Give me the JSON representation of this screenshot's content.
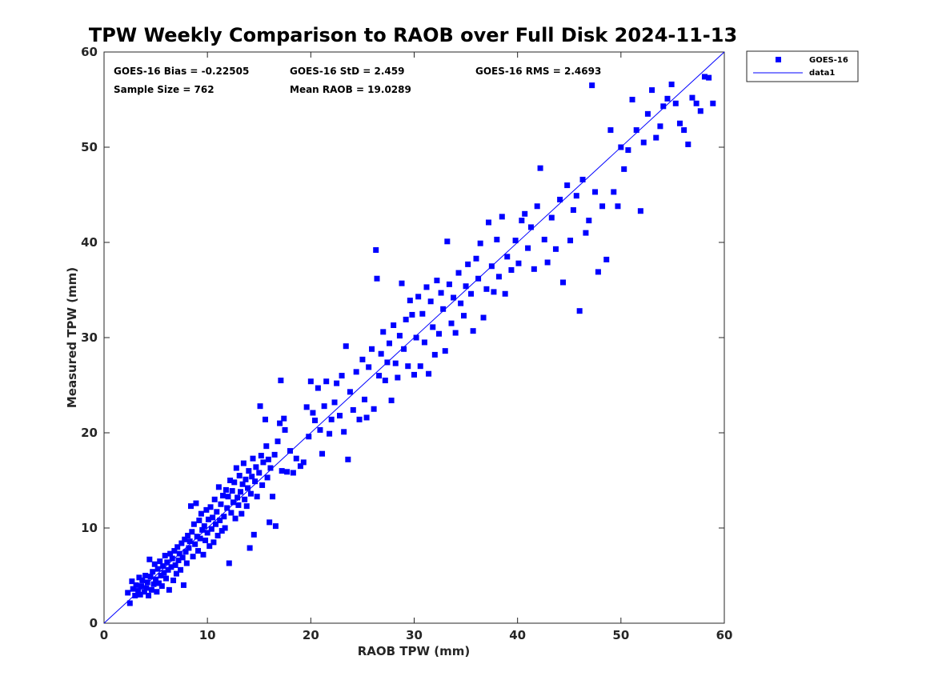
{
  "chart_data": {
    "type": "scatter",
    "title": "TPW Weekly Comparison to RAOB over Full Disk 2024-11-13",
    "xlabel": "RAOB TPW (mm)",
    "ylabel": "Measured TPW (mm)",
    "xlim": [
      0,
      60
    ],
    "ylim": [
      0,
      60
    ],
    "xticks": [
      0,
      10,
      20,
      30,
      40,
      50,
      60
    ],
    "yticks": [
      0,
      10,
      20,
      30,
      40,
      50,
      60
    ],
    "grid": false,
    "legend_position": "outside top-right",
    "annotations": {
      "bias": "GOES-16 Bias = -0.22505",
      "std": "GOES-16 StD = 2.459",
      "rms": "GOES-16 RMS = 2.4693",
      "sample_size": "Sample Size = 762",
      "mean_raob": "Mean RAOB = 19.0289"
    },
    "series": [
      {
        "name": "GOES-16",
        "marker": "square",
        "color": "#0000ff",
        "points": [
          [
            2.3,
            3.2
          ],
          [
            2.5,
            2.1
          ],
          [
            2.7,
            4.4
          ],
          [
            2.8,
            3.6
          ],
          [
            3.0,
            2.9
          ],
          [
            3.1,
            4.0
          ],
          [
            3.3,
            3.4
          ],
          [
            3.4,
            4.8
          ],
          [
            3.5,
            3.0
          ],
          [
            3.6,
            3.9
          ],
          [
            3.7,
            4.5
          ],
          [
            3.9,
            3.3
          ],
          [
            4.0,
            5.0
          ],
          [
            4.1,
            3.7
          ],
          [
            4.2,
            4.3
          ],
          [
            4.3,
            2.9
          ],
          [
            4.4,
            6.7
          ],
          [
            4.5,
            4.9
          ],
          [
            4.6,
            3.5
          ],
          [
            4.7,
            5.4
          ],
          [
            4.8,
            4.1
          ],
          [
            4.9,
            6.2
          ],
          [
            5.0,
            4.6
          ],
          [
            5.1,
            3.3
          ],
          [
            5.2,
            5.7
          ],
          [
            5.3,
            4.2
          ],
          [
            5.4,
            6.5
          ],
          [
            5.5,
            5.0
          ],
          [
            5.6,
            3.9
          ],
          [
            5.7,
            6.0
          ],
          [
            5.8,
            5.3
          ],
          [
            5.9,
            7.1
          ],
          [
            6.0,
            4.7
          ],
          [
            6.1,
            6.4
          ],
          [
            6.2,
            5.6
          ],
          [
            6.3,
            3.5
          ],
          [
            6.4,
            7.3
          ],
          [
            6.5,
            5.9
          ],
          [
            6.6,
            6.8
          ],
          [
            6.7,
            4.5
          ],
          [
            6.8,
            7.6
          ],
          [
            6.9,
            6.1
          ],
          [
            7.0,
            5.2
          ],
          [
            7.1,
            8.0
          ],
          [
            7.2,
            6.6
          ],
          [
            7.3,
            7.3
          ],
          [
            7.4,
            5.6
          ],
          [
            7.5,
            8.4
          ],
          [
            7.6,
            6.9
          ],
          [
            7.7,
            4.0
          ],
          [
            7.8,
            8.8
          ],
          [
            7.9,
            7.5
          ],
          [
            8.0,
            6.3
          ],
          [
            8.1,
            9.2
          ],
          [
            8.2,
            7.9
          ],
          [
            8.3,
            8.6
          ],
          [
            8.4,
            12.3
          ],
          [
            8.5,
            9.6
          ],
          [
            8.6,
            7.0
          ],
          [
            8.7,
            10.4
          ],
          [
            8.8,
            8.3
          ],
          [
            8.9,
            12.6
          ],
          [
            9.0,
            9.1
          ],
          [
            9.1,
            7.6
          ],
          [
            9.2,
            10.8
          ],
          [
            9.3,
            8.9
          ],
          [
            9.4,
            11.5
          ],
          [
            9.5,
            9.8
          ],
          [
            9.6,
            7.2
          ],
          [
            9.7,
            10.2
          ],
          [
            9.8,
            8.7
          ],
          [
            9.9,
            11.9
          ],
          [
            10.0,
            9.5
          ],
          [
            10.1,
            10.9
          ],
          [
            10.2,
            8.1
          ],
          [
            10.3,
            12.2
          ],
          [
            10.4,
            9.9
          ],
          [
            10.5,
            11.1
          ],
          [
            10.6,
            8.5
          ],
          [
            10.7,
            13.0
          ],
          [
            10.8,
            10.4
          ],
          [
            10.9,
            11.7
          ],
          [
            11.0,
            9.2
          ],
          [
            11.1,
            14.3
          ],
          [
            11.2,
            10.8
          ],
          [
            11.3,
            12.5
          ],
          [
            11.4,
            9.7
          ],
          [
            11.5,
            13.4
          ],
          [
            11.6,
            11.2
          ],
          [
            11.7,
            10.0
          ],
          [
            11.8,
            14.0
          ],
          [
            11.9,
            12.1
          ],
          [
            12.0,
            13.3
          ],
          [
            12.1,
            6.3
          ],
          [
            12.2,
            15.0
          ],
          [
            12.3,
            11.6
          ],
          [
            12.4,
            13.9
          ],
          [
            12.5,
            12.7
          ],
          [
            12.6,
            14.8
          ],
          [
            12.7,
            11.0
          ],
          [
            12.8,
            16.3
          ],
          [
            12.9,
            13.2
          ],
          [
            13.0,
            12.4
          ],
          [
            13.1,
            15.5
          ],
          [
            13.2,
            13.8
          ],
          [
            13.3,
            11.5
          ],
          [
            13.4,
            14.6
          ],
          [
            13.5,
            16.8
          ],
          [
            13.6,
            13.0
          ],
          [
            13.7,
            15.1
          ],
          [
            13.8,
            12.3
          ],
          [
            13.9,
            14.2
          ],
          [
            14.0,
            16.0
          ],
          [
            14.1,
            7.9
          ],
          [
            14.2,
            13.6
          ],
          [
            14.3,
            15.4
          ],
          [
            14.4,
            17.3
          ],
          [
            14.5,
            9.3
          ],
          [
            14.6,
            14.9
          ],
          [
            14.7,
            16.4
          ],
          [
            14.8,
            13.3
          ],
          [
            15.0,
            15.8
          ],
          [
            15.1,
            22.8
          ],
          [
            15.2,
            17.6
          ],
          [
            15.3,
            14.5
          ],
          [
            15.4,
            16.9
          ],
          [
            15.6,
            21.4
          ],
          [
            15.7,
            18.6
          ],
          [
            15.8,
            15.3
          ],
          [
            15.9,
            17.2
          ],
          [
            16.0,
            10.6
          ],
          [
            16.1,
            16.3
          ],
          [
            16.3,
            13.3
          ],
          [
            16.5,
            17.7
          ],
          [
            16.6,
            10.2
          ],
          [
            16.8,
            19.1
          ],
          [
            17.0,
            21.0
          ],
          [
            17.1,
            25.5
          ],
          [
            17.2,
            16.0
          ],
          [
            17.4,
            21.5
          ],
          [
            17.5,
            20.3
          ],
          [
            17.7,
            15.9
          ],
          [
            18.0,
            18.1
          ],
          [
            18.3,
            15.8
          ],
          [
            18.6,
            17.3
          ],
          [
            19.0,
            16.5
          ],
          [
            19.3,
            16.9
          ],
          [
            19.6,
            22.7
          ],
          [
            19.8,
            19.6
          ],
          [
            20.0,
            25.4
          ],
          [
            20.2,
            22.1
          ],
          [
            20.4,
            21.3
          ],
          [
            20.7,
            24.7
          ],
          [
            20.9,
            20.3
          ],
          [
            21.1,
            17.8
          ],
          [
            21.3,
            22.8
          ],
          [
            21.5,
            25.4
          ],
          [
            21.8,
            19.9
          ],
          [
            22.0,
            21.4
          ],
          [
            22.3,
            23.2
          ],
          [
            22.5,
            25.2
          ],
          [
            22.8,
            21.8
          ],
          [
            23.0,
            26.0
          ],
          [
            23.2,
            20.1
          ],
          [
            23.4,
            29.1
          ],
          [
            23.6,
            17.2
          ],
          [
            23.8,
            24.3
          ],
          [
            24.1,
            22.4
          ],
          [
            24.4,
            26.4
          ],
          [
            24.7,
            21.4
          ],
          [
            25.0,
            27.7
          ],
          [
            25.2,
            23.5
          ],
          [
            25.4,
            21.6
          ],
          [
            25.6,
            26.9
          ],
          [
            25.9,
            28.8
          ],
          [
            26.1,
            22.5
          ],
          [
            26.3,
            39.2
          ],
          [
            26.4,
            36.2
          ],
          [
            26.6,
            26.0
          ],
          [
            26.8,
            28.3
          ],
          [
            27.0,
            30.6
          ],
          [
            27.2,
            25.5
          ],
          [
            27.4,
            27.4
          ],
          [
            27.6,
            29.4
          ],
          [
            27.8,
            23.4
          ],
          [
            28.0,
            31.3
          ],
          [
            28.2,
            27.3
          ],
          [
            28.4,
            25.8
          ],
          [
            28.6,
            30.2
          ],
          [
            28.8,
            35.7
          ],
          [
            29.0,
            28.8
          ],
          [
            29.2,
            31.9
          ],
          [
            29.4,
            27.0
          ],
          [
            29.6,
            33.9
          ],
          [
            29.8,
            32.4
          ],
          [
            30.0,
            26.1
          ],
          [
            30.2,
            30.0
          ],
          [
            30.4,
            34.3
          ],
          [
            30.6,
            27.0
          ],
          [
            30.8,
            32.5
          ],
          [
            31.0,
            29.5
          ],
          [
            31.2,
            35.3
          ],
          [
            31.4,
            26.2
          ],
          [
            31.6,
            33.8
          ],
          [
            31.8,
            31.1
          ],
          [
            32.0,
            28.2
          ],
          [
            32.2,
            36.0
          ],
          [
            32.4,
            30.4
          ],
          [
            32.6,
            34.7
          ],
          [
            32.8,
            33.0
          ],
          [
            33.0,
            28.6
          ],
          [
            33.2,
            40.1
          ],
          [
            33.4,
            35.6
          ],
          [
            33.6,
            31.5
          ],
          [
            33.8,
            34.2
          ],
          [
            34.0,
            30.5
          ],
          [
            34.3,
            36.8
          ],
          [
            34.5,
            33.6
          ],
          [
            34.8,
            32.3
          ],
          [
            35.0,
            35.4
          ],
          [
            35.2,
            37.7
          ],
          [
            35.5,
            34.6
          ],
          [
            35.7,
            30.7
          ],
          [
            36.0,
            38.3
          ],
          [
            36.2,
            36.2
          ],
          [
            36.4,
            39.9
          ],
          [
            36.7,
            32.1
          ],
          [
            37.0,
            35.1
          ],
          [
            37.2,
            42.1
          ],
          [
            37.5,
            37.5
          ],
          [
            37.7,
            34.8
          ],
          [
            38.0,
            40.3
          ],
          [
            38.2,
            36.4
          ],
          [
            38.5,
            42.7
          ],
          [
            38.8,
            34.6
          ],
          [
            39.0,
            38.5
          ],
          [
            39.4,
            37.1
          ],
          [
            39.8,
            40.2
          ],
          [
            40.1,
            37.8
          ],
          [
            40.4,
            42.3
          ],
          [
            40.7,
            43.0
          ],
          [
            41.0,
            39.4
          ],
          [
            41.3,
            41.6
          ],
          [
            41.6,
            37.2
          ],
          [
            41.9,
            43.8
          ],
          [
            42.2,
            47.8
          ],
          [
            42.6,
            40.3
          ],
          [
            42.9,
            37.9
          ],
          [
            43.3,
            42.6
          ],
          [
            43.7,
            39.3
          ],
          [
            44.1,
            44.5
          ],
          [
            44.4,
            35.8
          ],
          [
            44.8,
            46.0
          ],
          [
            45.1,
            40.2
          ],
          [
            45.4,
            43.4
          ],
          [
            45.7,
            44.9
          ],
          [
            46.0,
            32.8
          ],
          [
            46.3,
            46.6
          ],
          [
            46.6,
            41.0
          ],
          [
            46.9,
            42.3
          ],
          [
            47.2,
            56.5
          ],
          [
            47.5,
            45.3
          ],
          [
            47.8,
            36.9
          ],
          [
            48.2,
            43.8
          ],
          [
            48.6,
            38.2
          ],
          [
            49.0,
            51.8
          ],
          [
            49.3,
            45.3
          ],
          [
            49.7,
            43.8
          ],
          [
            50.0,
            50.0
          ],
          [
            50.3,
            47.7
          ],
          [
            50.7,
            49.7
          ],
          [
            51.1,
            55.0
          ],
          [
            51.5,
            51.8
          ],
          [
            51.9,
            43.3
          ],
          [
            52.2,
            50.5
          ],
          [
            52.6,
            53.5
          ],
          [
            53.0,
            56.0
          ],
          [
            53.4,
            51.0
          ],
          [
            53.8,
            52.2
          ],
          [
            54.1,
            54.3
          ],
          [
            54.5,
            55.1
          ],
          [
            54.9,
            56.6
          ],
          [
            55.3,
            54.6
          ],
          [
            55.7,
            52.5
          ],
          [
            56.1,
            51.8
          ],
          [
            56.5,
            50.3
          ],
          [
            56.9,
            55.2
          ],
          [
            57.3,
            54.6
          ],
          [
            57.7,
            53.8
          ],
          [
            58.1,
            57.4
          ],
          [
            58.5,
            57.3
          ],
          [
            58.9,
            54.6
          ]
        ]
      }
    ],
    "reference_line": {
      "name": "data1",
      "color": "#0000ff",
      "from": [
        0,
        0
      ],
      "to": [
        60,
        60
      ]
    }
  }
}
